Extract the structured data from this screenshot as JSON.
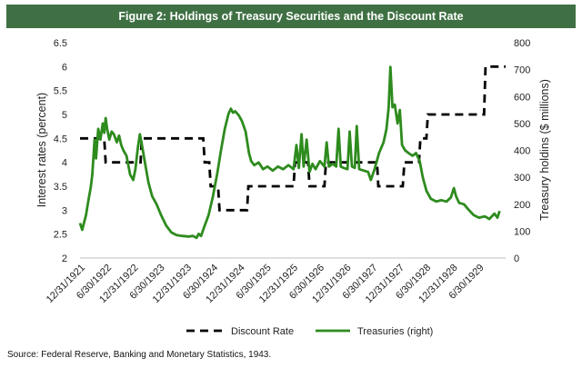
{
  "title": "Figure 2: Holdings of Treasury Securities and the Discount Rate",
  "source": "Source: Federal Reserve, Banking and Monetary Statistics, 1943.",
  "colors": {
    "banner": "#3f7043",
    "treasuries": "#2e8b1e",
    "discount": "#000000"
  },
  "chart_data": {
    "type": "line",
    "ylabel": "Interest rates (percent)",
    "y2label": "Treasury holdins ($ millions)",
    "ylim": [
      2,
      6.5
    ],
    "y2lim": [
      0,
      800
    ],
    "xlim": [
      "1921-12-31",
      "1929-12-31"
    ],
    "yticks": [
      "2",
      "2.5",
      "3",
      "3.5",
      "4",
      "4.5",
      "5",
      "5.5",
      "6",
      "6.5"
    ],
    "y2ticks": [
      "0",
      "100",
      "200",
      "300",
      "400",
      "500",
      "600",
      "700",
      "800"
    ],
    "xticks": [
      {
        "label": "12/31/1921",
        "date": "1921-12-31"
      },
      {
        "label": "6/30/1922",
        "date": "1922-06-30"
      },
      {
        "label": "12/31/1922",
        "date": "1922-12-31"
      },
      {
        "label": "6/30/1923",
        "date": "1923-06-30"
      },
      {
        "label": "12/31/1923",
        "date": "1923-12-31"
      },
      {
        "label": "6/30/1924",
        "date": "1924-06-30"
      },
      {
        "label": "12/31/1924",
        "date": "1924-12-31"
      },
      {
        "label": "6/30/1925",
        "date": "1925-06-30"
      },
      {
        "label": "12/31/1925",
        "date": "1925-12-31"
      },
      {
        "label": "6/30/1926",
        "date": "1926-06-30"
      },
      {
        "label": "12/31/1926",
        "date": "1926-12-31"
      },
      {
        "label": "6/30/1927",
        "date": "1927-06-30"
      },
      {
        "label": "12/31/1927",
        "date": "1927-12-31"
      },
      {
        "label": "6/30/1928",
        "date": "1928-06-30"
      },
      {
        "label": "12/31/1928",
        "date": "1928-12-31"
      },
      {
        "label": "6/30/1929",
        "date": "1929-06-30"
      }
    ],
    "legend_position": "bottom",
    "grid": false,
    "series": [
      {
        "name": "Discount Rate",
        "axis": "left",
        "style": "dashed",
        "points": [
          [
            "1921-12-31",
            4.5
          ],
          [
            "1922-06-15",
            4.5
          ],
          [
            "1922-06-25",
            4.0
          ],
          [
            "1923-02-20",
            4.0
          ],
          [
            "1923-02-28",
            4.5
          ],
          [
            "1924-04-25",
            4.5
          ],
          [
            "1924-05-05",
            4.0
          ],
          [
            "1924-06-05",
            4.0
          ],
          [
            "1924-06-15",
            3.5
          ],
          [
            "1924-08-05",
            3.5
          ],
          [
            "1924-08-15",
            3.0
          ],
          [
            "1925-02-20",
            3.0
          ],
          [
            "1925-03-01",
            3.5
          ],
          [
            "1926-01-05",
            3.5
          ],
          [
            "1926-01-15",
            4.0
          ],
          [
            "1926-04-15",
            4.0
          ],
          [
            "1926-04-25",
            3.5
          ],
          [
            "1926-08-05",
            3.5
          ],
          [
            "1926-08-15",
            4.0
          ],
          [
            "1927-08-01",
            4.0
          ],
          [
            "1927-08-10",
            3.5
          ],
          [
            "1928-01-25",
            3.5
          ],
          [
            "1928-02-05",
            4.0
          ],
          [
            "1928-05-15",
            4.0
          ],
          [
            "1928-05-25",
            4.5
          ],
          [
            "1928-07-05",
            4.5
          ],
          [
            "1928-07-15",
            5.0
          ],
          [
            "1929-08-05",
            5.0
          ],
          [
            "1929-08-15",
            6.0
          ],
          [
            "1929-12-31",
            6.0
          ]
        ]
      },
      {
        "name": "Treasuries (right)",
        "axis": "right",
        "style": "solid",
        "points": [
          [
            "1921-12-31",
            130
          ],
          [
            "1922-01-15",
            105
          ],
          [
            "1922-02-10",
            160
          ],
          [
            "1922-02-25",
            210
          ],
          [
            "1922-03-15",
            265
          ],
          [
            "1922-03-25",
            310
          ],
          [
            "1922-04-10",
            440
          ],
          [
            "1922-04-20",
            370
          ],
          [
            "1922-05-05",
            480
          ],
          [
            "1922-05-20",
            440
          ],
          [
            "1922-06-05",
            500
          ],
          [
            "1922-06-15",
            465
          ],
          [
            "1922-06-25",
            520
          ],
          [
            "1922-07-05",
            480
          ],
          [
            "1922-07-20",
            440
          ],
          [
            "1922-08-05",
            470
          ],
          [
            "1922-08-20",
            460
          ],
          [
            "1922-09-10",
            430
          ],
          [
            "1922-09-25",
            455
          ],
          [
            "1922-10-10",
            420
          ],
          [
            "1922-10-25",
            400
          ],
          [
            "1922-11-15",
            380
          ],
          [
            "1922-12-10",
            310
          ],
          [
            "1922-12-31",
            290
          ],
          [
            "1923-01-15",
            330
          ],
          [
            "1923-02-01",
            410
          ],
          [
            "1923-02-15",
            460
          ],
          [
            "1923-03-01",
            420
          ],
          [
            "1923-03-20",
            360
          ],
          [
            "1923-04-15",
            280
          ],
          [
            "1923-05-10",
            230
          ],
          [
            "1923-06-10",
            200
          ],
          [
            "1923-07-10",
            160
          ],
          [
            "1923-08-15",
            120
          ],
          [
            "1923-09-20",
            95
          ],
          [
            "1923-10-25",
            85
          ],
          [
            "1923-12-05",
            82
          ],
          [
            "1924-01-15",
            80
          ],
          [
            "1924-02-15",
            82
          ],
          [
            "1924-03-10",
            75
          ],
          [
            "1924-03-25",
            90
          ],
          [
            "1924-04-10",
            82
          ],
          [
            "1924-05-01",
            115
          ],
          [
            "1924-06-01",
            160
          ],
          [
            "1924-07-01",
            230
          ],
          [
            "1924-08-01",
            320
          ],
          [
            "1924-08-25",
            400
          ],
          [
            "1924-09-20",
            480
          ],
          [
            "1924-10-15",
            535
          ],
          [
            "1924-11-01",
            555
          ],
          [
            "1924-11-15",
            540
          ],
          [
            "1924-12-01",
            545
          ],
          [
            "1924-12-25",
            530
          ],
          [
            "1925-01-15",
            510
          ],
          [
            "1925-02-10",
            470
          ],
          [
            "1925-03-05",
            390
          ],
          [
            "1925-03-20",
            360
          ],
          [
            "1925-04-10",
            345
          ],
          [
            "1925-05-10",
            355
          ],
          [
            "1925-06-10",
            330
          ],
          [
            "1925-07-10",
            340
          ],
          [
            "1925-08-15",
            325
          ],
          [
            "1925-09-20",
            340
          ],
          [
            "1925-10-25",
            330
          ],
          [
            "1925-12-01",
            345
          ],
          [
            "1926-01-05",
            330
          ],
          [
            "1926-01-25",
            420
          ],
          [
            "1926-02-10",
            335
          ],
          [
            "1926-03-01",
            460
          ],
          [
            "1926-03-15",
            340
          ],
          [
            "1926-04-05",
            440
          ],
          [
            "1926-04-25",
            320
          ],
          [
            "1926-05-15",
            350
          ],
          [
            "1926-06-05",
            330
          ],
          [
            "1926-07-05",
            360
          ],
          [
            "1926-08-05",
            340
          ],
          [
            "1926-08-20",
            430
          ],
          [
            "1926-09-05",
            340
          ],
          [
            "1926-10-01",
            350
          ],
          [
            "1926-10-25",
            340
          ],
          [
            "1926-11-10",
            480
          ],
          [
            "1926-11-25",
            340
          ],
          [
            "1926-12-15",
            335
          ],
          [
            "1927-01-10",
            330
          ],
          [
            "1927-01-25",
            470
          ],
          [
            "1927-02-10",
            340
          ],
          [
            "1927-03-01",
            335
          ],
          [
            "1927-03-15",
            490
          ],
          [
            "1927-04-01",
            330
          ],
          [
            "1927-05-01",
            325
          ],
          [
            "1927-06-01",
            320
          ],
          [
            "1927-06-20",
            290
          ],
          [
            "1927-07-15",
            330
          ],
          [
            "1927-08-15",
            390
          ],
          [
            "1927-09-15",
            430
          ],
          [
            "1927-10-05",
            480
          ],
          [
            "1927-10-20",
            560
          ],
          [
            "1927-11-01",
            710
          ],
          [
            "1927-11-15",
            560
          ],
          [
            "1927-12-01",
            570
          ],
          [
            "1927-12-20",
            500
          ],
          [
            "1928-01-05",
            550
          ],
          [
            "1928-01-20",
            420
          ],
          [
            "1928-02-10",
            400
          ],
          [
            "1928-03-05",
            390
          ],
          [
            "1928-04-01",
            380
          ],
          [
            "1928-04-25",
            390
          ],
          [
            "1928-05-20",
            360
          ],
          [
            "1928-06-10",
            300
          ],
          [
            "1928-07-05",
            250
          ],
          [
            "1928-08-05",
            220
          ],
          [
            "1928-09-10",
            210
          ],
          [
            "1928-10-15",
            215
          ],
          [
            "1928-11-20",
            210
          ],
          [
            "1928-12-20",
            225
          ],
          [
            "1929-01-10",
            260
          ],
          [
            "1929-01-25",
            230
          ],
          [
            "1929-02-15",
            205
          ],
          [
            "1929-03-20",
            200
          ],
          [
            "1929-04-20",
            180
          ],
          [
            "1929-05-25",
            160
          ],
          [
            "1929-07-01",
            150
          ],
          [
            "1929-08-10",
            155
          ],
          [
            "1929-09-10",
            145
          ],
          [
            "1929-10-15",
            165
          ],
          [
            "1929-11-05",
            150
          ],
          [
            "1929-11-20",
            175
          ]
        ]
      }
    ]
  }
}
